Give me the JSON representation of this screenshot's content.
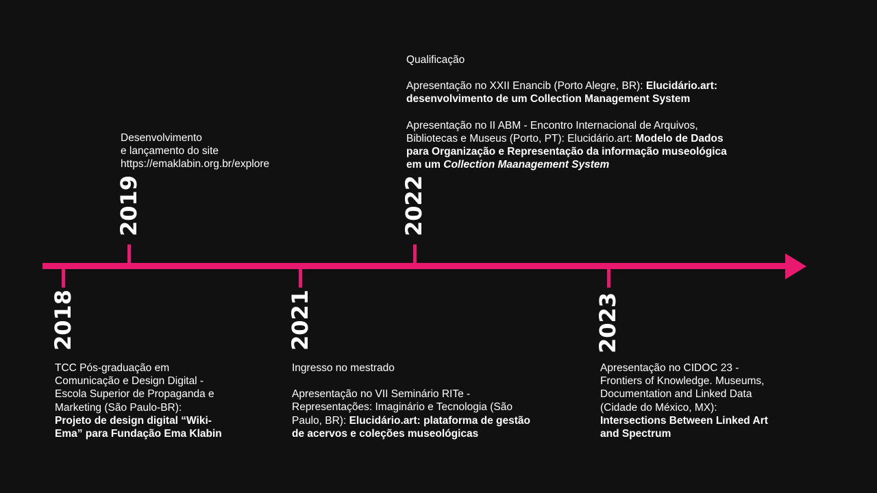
{
  "timeline": {
    "years": {
      "y2018": "2018",
      "y2019": "2019",
      "y2021": "2021",
      "y2022": "2022",
      "y2023": "2023"
    },
    "events": {
      "e2019": {
        "l1": "Desenvolvimento",
        "l2": "e lançamento do site",
        "l3": "https://emaklabin.org.br/explore"
      },
      "e2022": {
        "qualificacao": "Qualificação",
        "enancib_text": "Apresentação no XXII Enancib (Porto Alegre, BR): ",
        "enancib_bold1": "Elucidário.art:",
        "enancib_bold2": "desenvolvimento de um Collection Management System",
        "abm_text1": "Apresentação no II ABM - Encontro Internacional de Arquivos,",
        "abm_text2": "Bibliotecas e Museus (Porto, PT): Elucidário.art: ",
        "abm_bold1": "Modelo de Dados",
        "abm_bold2": "para Organização e Representação da informação museológica",
        "abm_bold3": "em um ",
        "abm_bold_italic": "Collection Maanagement System"
      },
      "e2018": {
        "l1": "TCC Pós-graduação em",
        "l2": "Comunicação e Design Digital -",
        "l3": "Escola Superior de Propaganda e",
        "l4": "Marketing (São Paulo-BR):",
        "b1": "Projeto de design digital “Wiki-",
        "b2": "Ema” para Fundação Ema Klabin"
      },
      "e2021": {
        "ingresso": "Ingresso no mestrado",
        "l1": "Apresentação no VII Seminário RITe -",
        "l2": "Representações: Imaginário e Tecnologia (São",
        "l3": "Paulo, BR): ",
        "b1": "Elucidário.art: plataforma de gestão",
        "b2": "de acervos e coleções museológicas"
      },
      "e2023": {
        "l1": "Apresentação no CIDOC 23 -",
        "l2": "Frontiers of Knowledge. Museums,",
        "l3": "Documentation and Linked Data",
        "l4": "(Cidade do México, MX):",
        "b1": "Intersections Between Linked Art",
        "b2": "and Spectrum"
      }
    },
    "colors": {
      "background": "#111111",
      "accent": "#e8196e",
      "text": "#ffffff"
    }
  }
}
